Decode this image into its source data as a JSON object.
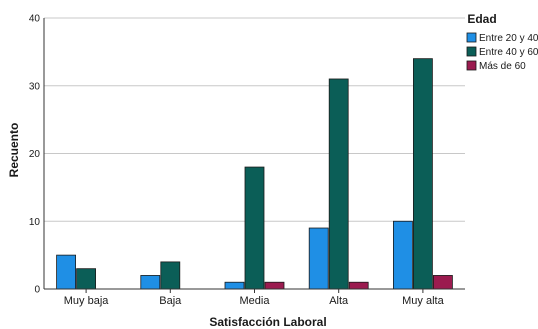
{
  "chart_data": {
    "type": "bar",
    "xlabel": "Satisfacción Laboral",
    "ylabel": "Recuento",
    "categories": [
      "Muy baja",
      "Baja",
      "Media",
      "Alta",
      "Muy alta"
    ],
    "ylim": [
      0,
      40
    ],
    "yticks": [
      0,
      10,
      20,
      30,
      40
    ],
    "grid": true,
    "legend": {
      "title": "Edad",
      "placement": "top-right"
    },
    "series": [
      {
        "name": "Entre 20 y 40",
        "color": "#1f8fe5",
        "values": [
          5,
          2,
          1,
          9,
          10
        ]
      },
      {
        "name": "Entre 40 y 60",
        "color": "#0b5e57",
        "values": [
          3,
          4,
          18,
          31,
          34
        ]
      },
      {
        "name": "Más de 60",
        "color": "#9b1b4f",
        "values": [
          0,
          0,
          1,
          1,
          2
        ]
      }
    ]
  }
}
